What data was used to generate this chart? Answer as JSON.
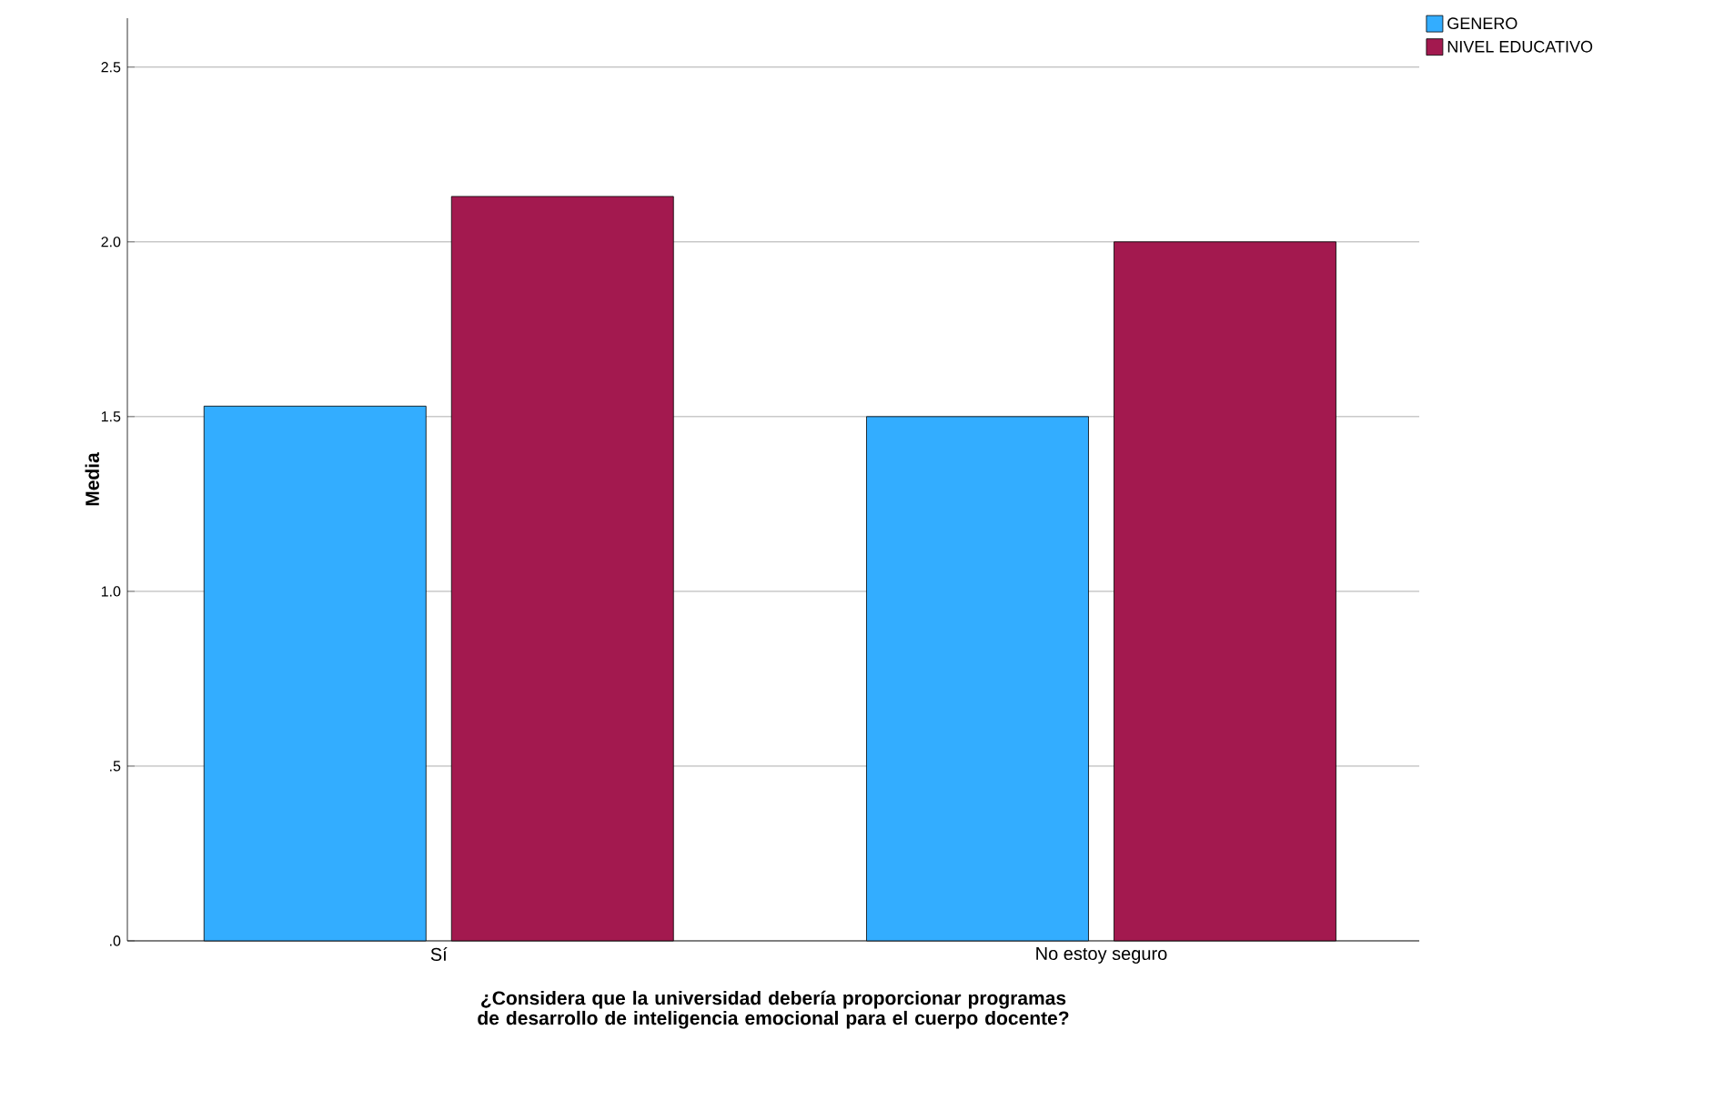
{
  "chart_data": {
    "type": "bar",
    "xlabel": "¿Considera que la universidad debería proporcionar programas de desarrollo de inteligencia emocional para el cuerpo docente?",
    "ylabel": "Media",
    "categories": [
      "Sí",
      "No estoy seguro"
    ],
    "series": [
      {
        "name": "GENERO",
        "color": "#33adff",
        "values": [
          1.53,
          1.5
        ]
      },
      {
        "name": "NIVEL EDUCATIVO",
        "color": "#a3194f",
        "values": [
          2.13,
          2.0
        ]
      }
    ],
    "ylim": [
      0,
      2.64
    ],
    "yticks": [
      {
        "value": 0,
        "label": ".0"
      },
      {
        "value": 0.5,
        "label": ".5"
      },
      {
        "value": 1.0,
        "label": "1.0"
      },
      {
        "value": 1.5,
        "label": "1.5"
      },
      {
        "value": 2.0,
        "label": "2.0"
      },
      {
        "value": 2.5,
        "label": "2.5"
      }
    ],
    "grid": "y",
    "legend": "top right"
  }
}
